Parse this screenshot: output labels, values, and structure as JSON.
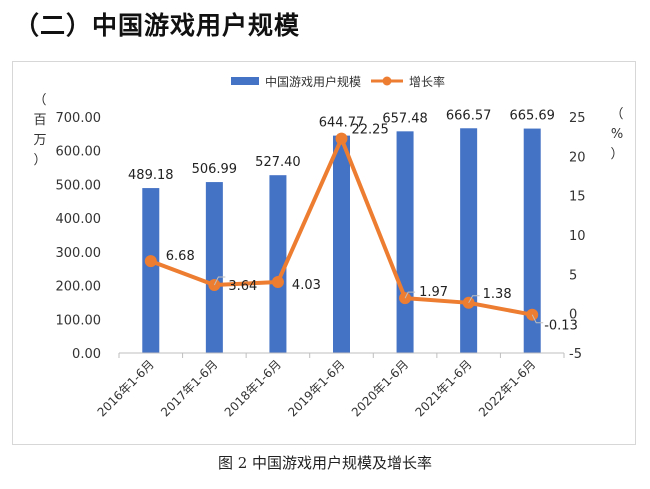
{
  "page": {
    "heading": "（二）中国游戏用户规模",
    "caption": "图 2 中国游戏用户规模及增长率"
  },
  "chart_data": {
    "type": "bar",
    "categories": [
      "2016年1-6月",
      "2017年1-6月",
      "2018年1-6月",
      "2019年1-6月",
      "2020年1-6月",
      "2021年1-6月",
      "2022年1-6月"
    ],
    "series": [
      {
        "name": "中国游戏用户规模",
        "type": "bar",
        "axis": "left",
        "color": "#4472c4",
        "values": [
          489.18,
          506.99,
          527.4,
          644.77,
          657.48,
          666.57,
          665.69
        ],
        "labels": [
          "489.18",
          "506.99",
          "527.40",
          "644.77",
          "657.48",
          "666.57",
          "665.69"
        ]
      },
      {
        "name": "增长率",
        "type": "line",
        "axis": "right",
        "color": "#ed7d31",
        "values": [
          6.68,
          3.64,
          4.03,
          22.25,
          1.97,
          1.38,
          -0.13
        ],
        "labels": [
          "6.68",
          "3.64",
          "4.03",
          "22.25",
          "1.97",
          "1.38",
          "-0.13"
        ]
      }
    ],
    "y_left": {
      "unit_chars": [
        "（",
        "百",
        "万",
        "）"
      ],
      "range": [
        0,
        700
      ],
      "ticks": [
        "0.00",
        "100.00",
        "200.00",
        "300.00",
        "400.00",
        "500.00",
        "600.00",
        "700.00"
      ]
    },
    "y_right": {
      "unit_chars": [
        "（",
        "%",
        "）"
      ],
      "range": [
        -5,
        25
      ],
      "ticks": [
        "-5",
        "0",
        "5",
        "10",
        "15",
        "20",
        "25"
      ]
    },
    "legend_position": "top",
    "grid": false
  }
}
